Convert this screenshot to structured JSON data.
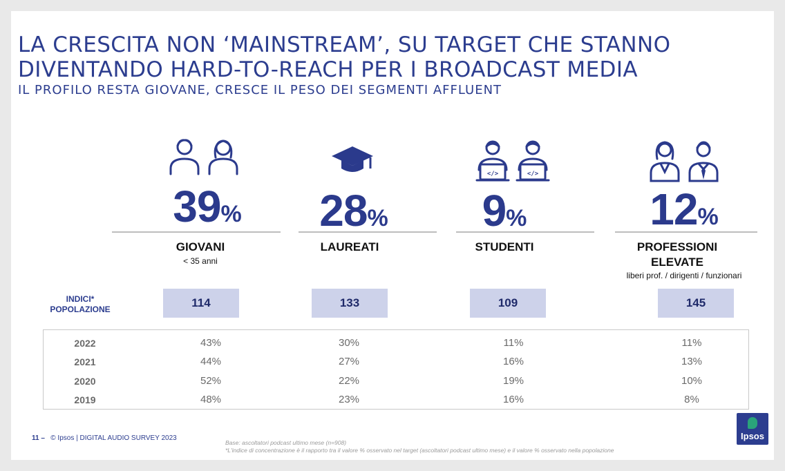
{
  "title": {
    "line1": "LA CRESCITA NON ‘MAINSTREAM’, SU TARGET CHE STANNO",
    "line2": "DIVENTANDO HARD-TO-REACH PER I BROADCAST MEDIA"
  },
  "subtitle": "IL PROFILO RESTA GIOVANE, CRESCE IL PESO DEI SEGMENTI AFFLUENT",
  "segments": [
    {
      "value": "39",
      "unit": "%",
      "label": "GIOVANI",
      "sublabel": "< 35 anni",
      "index": "114",
      "icons": [
        "young-man-icon",
        "young-woman-icon"
      ]
    },
    {
      "value": "28",
      "unit": "%",
      "label": "LAUREATI",
      "sublabel": "",
      "index": "133",
      "icons": [
        "graduation-cap-icon"
      ]
    },
    {
      "value": "9",
      "unit": "%",
      "label": "STUDENTI",
      "sublabel": "",
      "index": "109",
      "icons": [
        "student-laptop-icon",
        "student-laptop-icon"
      ]
    },
    {
      "value": "12",
      "unit": "%",
      "label": "PROFESSIONI\nELEVATE",
      "label_line1": "PROFESSIONI",
      "label_line2": "ELEVATE",
      "sublabel": "liberi prof. / dirigenti / funzionari",
      "index": "145",
      "icons": [
        "businesswoman-icon",
        "businessman-icon"
      ]
    }
  ],
  "index_title": {
    "line1": "INDICI*",
    "line2": "POPOLAZIONE"
  },
  "history": {
    "rows": [
      {
        "year": "2022",
        "values": [
          "43%",
          "30%",
          "11%",
          "11%"
        ]
      },
      {
        "year": "2021",
        "values": [
          "44%",
          "27%",
          "16%",
          "13%"
        ]
      },
      {
        "year": "2020",
        "values": [
          "52%",
          "22%",
          "19%",
          "10%"
        ]
      },
      {
        "year": "2019",
        "values": [
          "48%",
          "23%",
          "16%",
          "8%"
        ]
      }
    ]
  },
  "footer": {
    "page": "11 –",
    "copyright": "© Ipsos | DIGITAL AUDIO SURVEY 2023"
  },
  "footnote": {
    "line1": "Base: ascoltatori podcast ultimo mese (n=908)",
    "line2": "*L'indice di concentrazione è il rapporto tra il valore % osservato nel target (ascoltatori podcast ultimo mese) e il valore % osservato nella popolazione"
  },
  "logo": {
    "text": "Ipsos"
  },
  "colors": {
    "brand": "#2c3d8f",
    "index_box": "#cdd2ea",
    "logo_bubble": "#2aa37a"
  }
}
